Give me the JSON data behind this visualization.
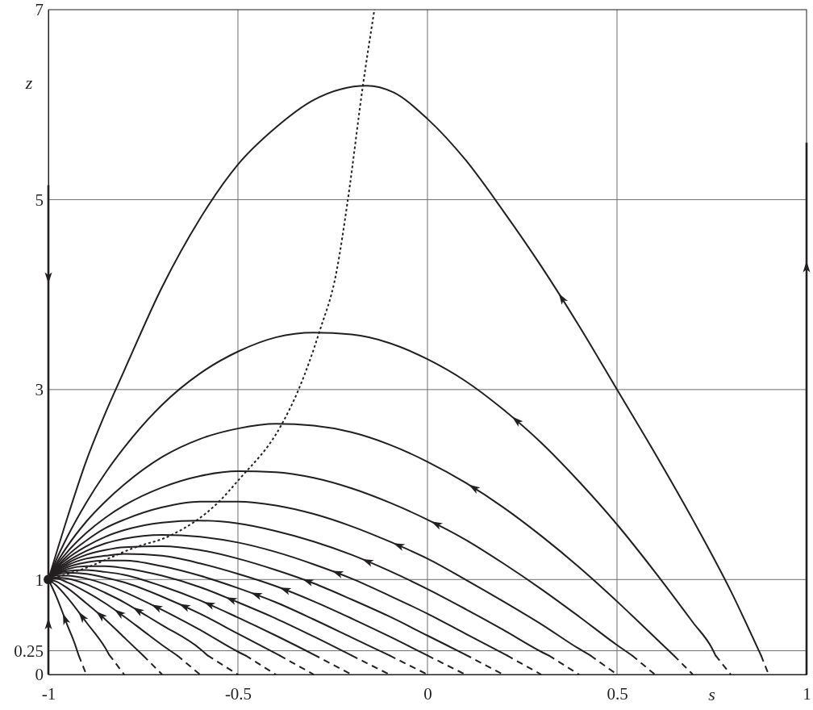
{
  "chart_data": {
    "type": "line",
    "xlabel": "s",
    "ylabel": "z",
    "xlim": [
      -1,
      1
    ],
    "ylim": [
      0,
      7
    ],
    "xticks": [
      -1,
      -0.5,
      0,
      0.5,
      1
    ],
    "yticks": [
      0,
      0.25,
      1,
      3,
      5,
      7
    ],
    "grid": true,
    "series": [
      {
        "color": "#231f20",
        "line_style": "solid",
        "x": [
          -1,
          -0.95,
          -0.9,
          -0.85,
          -0.8,
          -0.7,
          -0.6,
          -0.5,
          -0.4,
          -0.3,
          -0.16,
          -0.09,
          0,
          0.1,
          0.2,
          0.3,
          0.4,
          0.5,
          0.6,
          0.7,
          0.8,
          0.88
        ],
        "values": [
          1,
          1.65,
          2.25,
          2.75,
          3.2,
          4.08,
          4.8,
          5.37,
          5.76,
          6.05,
          6.2,
          6.13,
          5.85,
          5.42,
          4.88,
          4.3,
          3.67,
          3.0,
          2.33,
          1.63,
          0.88,
          0.2
        ]
      },
      {
        "color": "#231f20",
        "line_style": "dashed",
        "x": [
          0.88,
          0.9
        ],
        "values": [
          0.2,
          0
        ]
      },
      {
        "color": "#231f20",
        "line_style": "solid",
        "x": [
          -1,
          -0.98,
          -0.95,
          -0.9,
          -0.85,
          -0.8,
          -0.7,
          -0.6,
          -0.5,
          -0.4,
          -0.3,
          -0.2,
          -0.1,
          0,
          0.1,
          0.2,
          0.3,
          0.4,
          0.5,
          0.6,
          0.7,
          0.75,
          0.76
        ],
        "values": [
          1,
          1.2,
          1.45,
          1.81,
          2.12,
          2.39,
          2.84,
          3.17,
          3.4,
          3.55,
          3.6,
          3.58,
          3.49,
          3.32,
          3.09,
          2.79,
          2.44,
          2.03,
          1.58,
          1.08,
          0.55,
          0.28,
          0.2
        ]
      },
      {
        "color": "#231f20",
        "line_style": "dashed",
        "x": [
          0.76,
          0.8
        ],
        "values": [
          0.2,
          0
        ]
      },
      {
        "color": "#231f20",
        "line_style": "solid",
        "x": [
          -1,
          -0.98,
          -0.95,
          -0.9,
          -0.85,
          -0.8,
          -0.7,
          -0.6,
          -0.5,
          -0.4,
          -0.3,
          -0.2,
          -0.1,
          0,
          0.1,
          0.2,
          0.3,
          0.4,
          0.5,
          0.6,
          0.65
        ],
        "values": [
          1,
          1.16,
          1.35,
          1.61,
          1.82,
          2.0,
          2.29,
          2.48,
          2.59,
          2.64,
          2.62,
          2.55,
          2.42,
          2.24,
          2.02,
          1.76,
          1.46,
          1.13,
          0.77,
          0.39,
          0.2
        ]
      },
      {
        "color": "#231f20",
        "line_style": "dashed",
        "x": [
          0.65,
          0.7
        ],
        "values": [
          0.2,
          0
        ]
      },
      {
        "color": "#231f20",
        "line_style": "solid",
        "x": [
          -1,
          -0.98,
          -0.95,
          -0.9,
          -0.85,
          -0.8,
          -0.7,
          -0.6,
          -0.5,
          -0.4,
          -0.3,
          -0.2,
          -0.1,
          0,
          0.1,
          0.2,
          0.3,
          0.4,
          0.5,
          0.54
        ],
        "values": [
          1,
          1.14,
          1.29,
          1.49,
          1.65,
          1.78,
          1.97,
          2.09,
          2.14,
          2.13,
          2.07,
          1.96,
          1.81,
          1.63,
          1.42,
          1.17,
          0.9,
          0.61,
          0.31,
          0.2
        ]
      },
      {
        "color": "#231f20",
        "line_style": "dashed",
        "x": [
          0.54,
          0.6
        ],
        "values": [
          0.2,
          0
        ]
      },
      {
        "color": "#231f20",
        "line_style": "solid",
        "x": [
          -1,
          -0.98,
          -0.95,
          -0.9,
          -0.85,
          -0.8,
          -0.7,
          -0.6,
          -0.5,
          -0.4,
          -0.3,
          -0.2,
          -0.1,
          0,
          0.1,
          0.2,
          0.3,
          0.4,
          0.43
        ],
        "values": [
          1,
          1.12,
          1.25,
          1.41,
          1.54,
          1.63,
          1.76,
          1.82,
          1.82,
          1.78,
          1.69,
          1.56,
          1.4,
          1.22,
          1.0,
          0.77,
          0.53,
          0.27,
          0.2
        ]
      },
      {
        "color": "#231f20",
        "line_style": "dashed",
        "x": [
          0.43,
          0.5
        ],
        "values": [
          0.2,
          0
        ]
      },
      {
        "color": "#231f20",
        "line_style": "solid",
        "x": [
          -1,
          -0.98,
          -0.95,
          -0.9,
          -0.85,
          -0.8,
          -0.7,
          -0.6,
          -0.5,
          -0.4,
          -0.3,
          -0.2,
          -0.1,
          0,
          0.1,
          0.2,
          0.3,
          0.32
        ],
        "values": [
          1,
          1.11,
          1.22,
          1.35,
          1.45,
          1.52,
          1.6,
          1.62,
          1.59,
          1.51,
          1.4,
          1.26,
          1.09,
          0.9,
          0.69,
          0.47,
          0.24,
          0.2
        ]
      },
      {
        "color": "#231f20",
        "line_style": "dashed",
        "x": [
          0.32,
          0.4
        ],
        "values": [
          0.2,
          0
        ]
      },
      {
        "color": "#231f20",
        "line_style": "solid",
        "x": [
          -1,
          -0.98,
          -0.95,
          -0.9,
          -0.85,
          -0.8,
          -0.7,
          -0.6,
          -0.5,
          -0.4,
          -0.3,
          -0.2,
          -0.1,
          0,
          0.1,
          0.21
        ],
        "values": [
          1,
          1.1,
          1.19,
          1.3,
          1.38,
          1.43,
          1.47,
          1.45,
          1.39,
          1.29,
          1.16,
          1.01,
          0.83,
          0.64,
          0.43,
          0.2
        ]
      },
      {
        "color": "#231f20",
        "line_style": "dashed",
        "x": [
          0.21,
          0.3
        ],
        "values": [
          0.2,
          0
        ]
      },
      {
        "color": "#231f20",
        "line_style": "solid",
        "x": [
          -1,
          -0.98,
          -0.95,
          -0.9,
          -0.85,
          -0.8,
          -0.7,
          -0.6,
          -0.5,
          -0.4,
          -0.3,
          -0.2,
          -0.1,
          0,
          0.1
        ],
        "values": [
          1,
          1.09,
          1.17,
          1.26,
          1.31,
          1.34,
          1.35,
          1.31,
          1.22,
          1.1,
          0.96,
          0.79,
          0.61,
          0.41,
          0.21
        ]
      },
      {
        "color": "#231f20",
        "line_style": "dashed",
        "x": [
          0.1,
          0.2
        ],
        "values": [
          0.21,
          0
        ]
      },
      {
        "color": "#231f20",
        "line_style": "solid",
        "x": [
          -1,
          -0.98,
          -0.95,
          -0.9,
          -0.85,
          -0.8,
          -0.7,
          -0.6,
          -0.5,
          -0.4,
          -0.3,
          -0.2,
          -0.1,
          0
        ],
        "values": [
          1,
          1.08,
          1.15,
          1.22,
          1.25,
          1.27,
          1.25,
          1.17,
          1.06,
          0.93,
          0.77,
          0.59,
          0.4,
          0.2
        ]
      },
      {
        "color": "#231f20",
        "line_style": "dashed",
        "x": [
          0,
          0.1
        ],
        "values": [
          0.2,
          0
        ]
      },
      {
        "color": "#231f20",
        "line_style": "solid",
        "x": [
          -1,
          -0.98,
          -0.95,
          -0.9,
          -0.85,
          -0.8,
          -0.7,
          -0.6,
          -0.5,
          -0.4,
          -0.3,
          -0.2,
          -0.1
        ],
        "values": [
          1,
          1.07,
          1.13,
          1.18,
          1.2,
          1.2,
          1.14,
          1.04,
          0.91,
          0.76,
          0.58,
          0.39,
          0.2
        ]
      },
      {
        "color": "#231f20",
        "line_style": "dashed",
        "x": [
          -0.1,
          0
        ],
        "values": [
          0.2,
          0
        ]
      },
      {
        "color": "#231f20",
        "line_style": "solid",
        "x": [
          -1,
          -0.98,
          -0.95,
          -0.9,
          -0.85,
          -0.8,
          -0.7,
          -0.6,
          -0.5,
          -0.4,
          -0.3,
          -0.2
        ],
        "values": [
          1,
          1.06,
          1.11,
          1.14,
          1.14,
          1.12,
          1.04,
          0.92,
          0.76,
          0.59,
          0.4,
          0.2
        ]
      },
      {
        "color": "#231f20",
        "line_style": "dashed",
        "x": [
          -0.2,
          -0.1
        ],
        "values": [
          0.2,
          0
        ]
      },
      {
        "color": "#231f20",
        "line_style": "solid",
        "x": [
          -1,
          -0.98,
          -0.95,
          -0.9,
          -0.85,
          -0.8,
          -0.7,
          -0.6,
          -0.5,
          -0.4,
          -0.3
        ],
        "values": [
          1,
          1.06,
          1.09,
          1.1,
          1.08,
          1.05,
          0.93,
          0.78,
          0.6,
          0.41,
          0.21
        ]
      },
      {
        "color": "#231f20",
        "line_style": "dashed",
        "x": [
          -0.3,
          -0.2
        ],
        "values": [
          0.21,
          0
        ]
      },
      {
        "color": "#231f20",
        "line_style": "solid",
        "x": [
          -1,
          -0.98,
          -0.95,
          -0.9,
          -0.85,
          -0.8,
          -0.7,
          -0.6,
          -0.5,
          -0.39
        ],
        "values": [
          1,
          1.05,
          1.07,
          1.06,
          1.02,
          0.97,
          0.82,
          0.64,
          0.43,
          0.2
        ]
      },
      {
        "color": "#231f20",
        "line_style": "dashed",
        "x": [
          -0.39,
          -0.3
        ],
        "values": [
          0.2,
          0
        ]
      },
      {
        "color": "#231f20",
        "line_style": "solid",
        "x": [
          -1,
          -0.98,
          -0.95,
          -0.9,
          -0.85,
          -0.8,
          -0.7,
          -0.6,
          -0.5,
          -0.48
        ],
        "values": [
          1,
          1.04,
          1.04,
          1.01,
          0.95,
          0.87,
          0.68,
          0.47,
          0.24,
          0.2
        ]
      },
      {
        "color": "#231f20",
        "line_style": "dashed",
        "x": [
          -0.48,
          -0.4
        ],
        "values": [
          0.2,
          0
        ]
      },
      {
        "color": "#231f20",
        "line_style": "solid",
        "x": [
          -1,
          -0.98,
          -0.95,
          -0.9,
          -0.85,
          -0.8,
          -0.75,
          -0.7,
          -0.6,
          -0.58
        ],
        "values": [
          1,
          1.02,
          1.01,
          0.95,
          0.86,
          0.76,
          0.64,
          0.52,
          0.27,
          0.2
        ]
      },
      {
        "color": "#231f20",
        "line_style": "dashed",
        "x": [
          -0.58,
          -0.5
        ],
        "values": [
          0.2,
          0
        ]
      },
      {
        "color": "#231f20",
        "line_style": "solid",
        "x": [
          -1,
          -0.98,
          -0.95,
          -0.9,
          -0.85,
          -0.8,
          -0.75,
          -0.7,
          -0.66
        ],
        "values": [
          1,
          1.01,
          0.97,
          0.87,
          0.75,
          0.61,
          0.46,
          0.31,
          0.2
        ]
      },
      {
        "color": "#231f20",
        "line_style": "dashed",
        "x": [
          -0.66,
          -0.6
        ],
        "values": [
          0.2,
          0
        ]
      },
      {
        "color": "#231f20",
        "line_style": "solid",
        "x": [
          -1,
          -0.98,
          -0.95,
          -0.9,
          -0.85,
          -0.8,
          -0.75
        ],
        "values": [
          1,
          0.98,
          0.91,
          0.75,
          0.58,
          0.39,
          0.2
        ]
      },
      {
        "color": "#231f20",
        "line_style": "dashed",
        "x": [
          -0.75,
          -0.7
        ],
        "values": [
          0.2,
          0
        ]
      },
      {
        "color": "#231f20",
        "line_style": "solid",
        "x": [
          -1,
          -0.98,
          -0.95,
          -0.9,
          -0.85,
          -0.84
        ],
        "values": [
          1,
          0.94,
          0.81,
          0.55,
          0.28,
          0.21
        ]
      },
      {
        "color": "#231f20",
        "line_style": "dashed",
        "x": [
          -0.84,
          -0.8
        ],
        "values": [
          0.21,
          0
        ]
      },
      {
        "color": "#231f20",
        "line_style": "solid",
        "x": [
          -1,
          -0.98,
          -0.95,
          -0.93,
          -0.92
        ],
        "values": [
          1,
          0.83,
          0.52,
          0.32,
          0.2
        ]
      },
      {
        "color": "#231f20",
        "line_style": "dashed",
        "x": [
          -0.92,
          -0.9
        ],
        "values": [
          0.2,
          0
        ]
      },
      {
        "color": "#231f20",
        "line_style": "dotted",
        "x": [
          -1,
          -0.91,
          -0.77,
          -0.68,
          -0.55,
          -0.5,
          -0.385,
          -0.34,
          -0.285,
          -0.24,
          -0.21,
          -0.17,
          -0.14
        ],
        "values": [
          1,
          1.11,
          1.34,
          1.46,
          1.82,
          2.04,
          2.63,
          3.0,
          3.61,
          4.24,
          5.0,
          6.21,
          7.0
        ]
      },
      {
        "type": "scatter",
        "marker": "circle",
        "color": "#231f20",
        "x": [
          -1
        ],
        "values": [
          1
        ]
      }
    ]
  }
}
